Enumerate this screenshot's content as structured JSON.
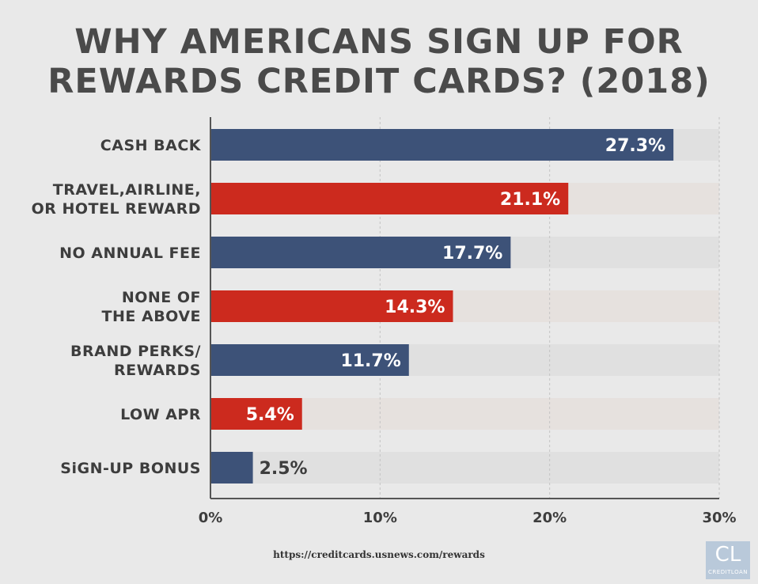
{
  "title": {
    "line1": "WHY AMERICANS SIGN UP FOR",
    "line2": "REWARDS CREDIT CARDS? (2018)"
  },
  "source": "https://creditcards.usnews.com/rewards",
  "logo": {
    "mark": "CL",
    "sub": "CREDITLOAN"
  },
  "colors": {
    "navy": "#3d5278",
    "red": "#cc2a1e",
    "track_navy": "#e0e0e0",
    "track_red": "#e6e1de",
    "axis": "#555555",
    "grid": "#c4c4c4"
  },
  "chart_data": {
    "type": "bar",
    "orientation": "horizontal",
    "title": "WHY AMERICANS SIGN UP FOR REWARDS CREDIT CARDS? (2018)",
    "categories": [
      [
        "CASH BACK"
      ],
      [
        "TRAVEL,AIRLINE,",
        "OR HOTEL REWARD"
      ],
      [
        "NO ANNUAL FEE"
      ],
      [
        "NONE OF",
        "THE ABOVE"
      ],
      [
        "BRAND PERKS/",
        "REWARDS"
      ],
      [
        "LOW APR"
      ],
      [
        "SiGN-UP BONUS"
      ]
    ],
    "values": [
      27.3,
      21.1,
      17.7,
      14.3,
      11.7,
      5.4,
      2.5
    ],
    "value_labels": [
      "27.3%",
      "21.1%",
      "17.7%",
      "14.3%",
      "11.7%",
      "5.4%",
      "2.5%"
    ],
    "bar_colors": [
      "navy",
      "red",
      "navy",
      "red",
      "navy",
      "red",
      "navy"
    ],
    "xlim": [
      0,
      30
    ],
    "ticks": [
      0,
      10,
      20,
      30
    ],
    "tick_labels": [
      "0%",
      "10%",
      "20%",
      "30%"
    ],
    "xlabel": "",
    "ylabel": "",
    "grid": true
  }
}
